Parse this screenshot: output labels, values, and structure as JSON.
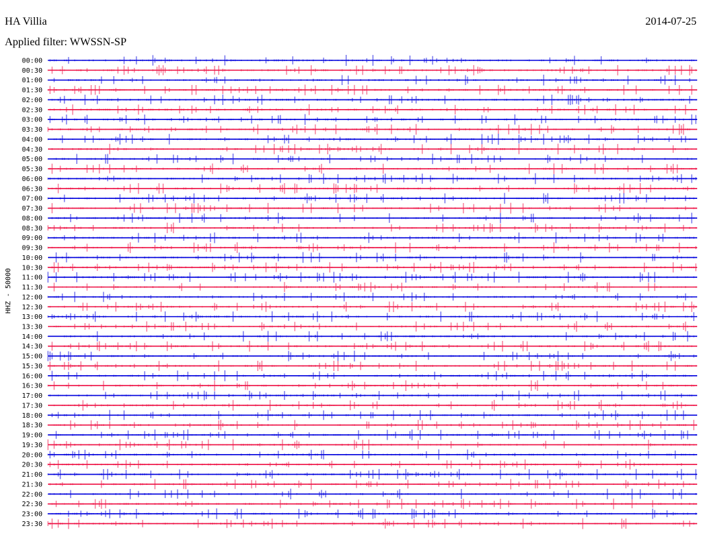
{
  "header": {
    "station": "HA Villia",
    "date": "2014-07-25",
    "filter": "Applied filter: WWSSN-SP"
  },
  "chart_data": {
    "type": "line",
    "title": "HA Villia",
    "date": "2014-07-25",
    "filter": "WWSSN-SP",
    "ylabel": "HHZ - 50000",
    "row_interval_minutes": 30,
    "row_labels": [
      "00:00",
      "00:30",
      "01:00",
      "01:30",
      "02:00",
      "02:30",
      "03:00",
      "03:30",
      "04:00",
      "04:30",
      "05:00",
      "05:30",
      "06:00",
      "06:30",
      "07:00",
      "07:30",
      "08:00",
      "08:30",
      "09:00",
      "09:30",
      "10:00",
      "10:30",
      "11:00",
      "11:30",
      "12:00",
      "12:30",
      "13:00",
      "13:30",
      "14:00",
      "14:30",
      "15:00",
      "15:30",
      "16:00",
      "16:30",
      "17:00",
      "17:30",
      "18:00",
      "18:30",
      "19:00",
      "19:30",
      "20:00",
      "20:30",
      "21:00",
      "21:30",
      "22:00",
      "22:30",
      "23:00",
      "23:30"
    ],
    "series_colors": [
      "#0000dd",
      "#ee1144"
    ]
  }
}
